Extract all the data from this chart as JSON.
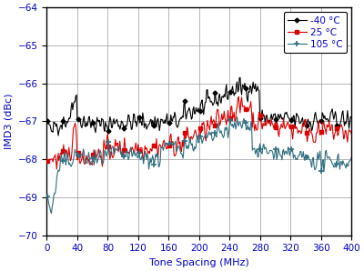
{
  "xlabel": "Tone Spacing (MHz)",
  "ylabel": "IMD3 (dBc)",
  "xlim": [
    0,
    400
  ],
  "ylim": [
    -70,
    -64
  ],
  "yticks": [
    -70,
    -69,
    -68,
    -67,
    -66,
    -65,
    -64
  ],
  "xticks": [
    0,
    40,
    80,
    120,
    160,
    200,
    240,
    280,
    320,
    360,
    400
  ],
  "legend": [
    "-40 °C",
    "25 °C",
    "105 °C"
  ],
  "colors": [
    "#000000",
    "#dd0000",
    "#2e6e7e"
  ],
  "markersize_40": 2.5,
  "markersize_25": 3.5,
  "markersize_105": 3.5,
  "linewidth": 0.8,
  "figsize": [
    4.0,
    2.98
  ],
  "dpi": 100
}
